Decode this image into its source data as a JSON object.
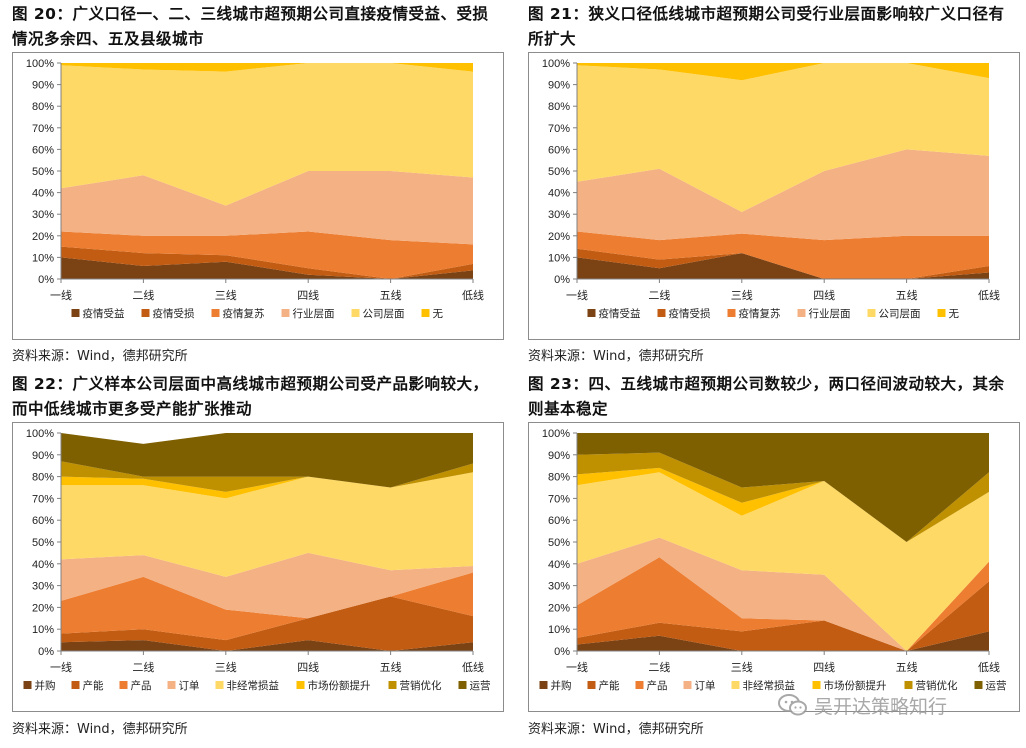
{
  "figures": [
    {
      "title": "图 20：广义口径一、二、三线城市超预期公司直接疫情受益、受损情况多余四、五及县级城市",
      "source": "资料来源：Wind，德邦研究所",
      "chart_data": {
        "type": "area",
        "stacked": true,
        "categories": [
          "一线",
          "二线",
          "三线",
          "四线",
          "五线",
          "低线"
        ],
        "ylim": [
          0,
          100
        ],
        "yticks": [
          "0%",
          "10%",
          "20%",
          "30%",
          "40%",
          "50%",
          "60%",
          "70%",
          "80%",
          "90%",
          "100%"
        ],
        "legend_position": "bottom",
        "series": [
          {
            "name": "疫情受益",
            "color": "#7b4214",
            "values": [
              10,
              6,
              8,
              2,
              0,
              4
            ]
          },
          {
            "name": "疫情受损",
            "color": "#c25c12",
            "values": [
              5,
              6,
              3,
              3,
              0,
              3
            ]
          },
          {
            "name": "疫情复苏",
            "color": "#ed7d31",
            "values": [
              7,
              8,
              9,
              17,
              18,
              9
            ]
          },
          {
            "name": "行业层面",
            "color": "#f4b183",
            "values": [
              20,
              28,
              14,
              28,
              32,
              31
            ]
          },
          {
            "name": "公司层面",
            "color": "#ffd966",
            "values": [
              57,
              49,
              62,
              50,
              50,
              49
            ]
          },
          {
            "name": "无",
            "color": "#ffc000",
            "values": [
              1,
              3,
              4,
              0,
              0,
              4
            ]
          }
        ]
      }
    },
    {
      "title": "图 21：狭义口径低线城市超预期公司受行业层面影响较广义口径有所扩大",
      "source": "资料来源：Wind，德邦研究所",
      "chart_data": {
        "type": "area",
        "stacked": true,
        "categories": [
          "一线",
          "二线",
          "三线",
          "四线",
          "五线",
          "低线"
        ],
        "ylim": [
          0,
          100
        ],
        "yticks": [
          "0%",
          "10%",
          "20%",
          "30%",
          "40%",
          "50%",
          "60%",
          "70%",
          "80%",
          "90%",
          "100%"
        ],
        "legend_position": "bottom",
        "series": [
          {
            "name": "疫情受益",
            "color": "#7b4214",
            "values": [
              10,
              5,
              12,
              0,
              0,
              3
            ]
          },
          {
            "name": "疫情受损",
            "color": "#c25c12",
            "values": [
              4,
              4,
              0,
              0,
              0,
              3
            ]
          },
          {
            "name": "疫情复苏",
            "color": "#ed7d31",
            "values": [
              8,
              9,
              9,
              18,
              20,
              14
            ]
          },
          {
            "name": "行业层面",
            "color": "#f4b183",
            "values": [
              23,
              33,
              10,
              32,
              40,
              37
            ]
          },
          {
            "name": "公司层面",
            "color": "#ffd966",
            "values": [
              54,
              46,
              61,
              50,
              40,
              36
            ]
          },
          {
            "name": "无",
            "color": "#ffc000",
            "values": [
              1,
              3,
              8,
              0,
              0,
              7
            ]
          }
        ]
      }
    },
    {
      "title": "图 22：广义样本公司层面中高线城市超预期公司受产品影响较大，而中低线城市更多受产能扩张推动",
      "source": "资料来源：Wind，德邦研究所",
      "chart_data": {
        "type": "area",
        "stacked": true,
        "categories": [
          "一线",
          "二线",
          "三线",
          "四线",
          "五线",
          "低线"
        ],
        "ylim": [
          0,
          100
        ],
        "yticks": [
          "0%",
          "10%",
          "20%",
          "30%",
          "40%",
          "50%",
          "60%",
          "70%",
          "80%",
          "90%",
          "100%"
        ],
        "legend_position": "bottom",
        "series": [
          {
            "name": "并购",
            "color": "#7b4214",
            "values": [
              4,
              5,
              0,
              5,
              0,
              4
            ]
          },
          {
            "name": "产能",
            "color": "#c25c12",
            "values": [
              4,
              5,
              5,
              10,
              25,
              12
            ]
          },
          {
            "name": "产品",
            "color": "#ed7d31",
            "values": [
              15,
              24,
              14,
              0,
              0,
              20
            ]
          },
          {
            "name": "订单",
            "color": "#f4b183",
            "values": [
              19,
              10,
              15,
              30,
              12,
              3
            ]
          },
          {
            "name": "非经常损益",
            "color": "#ffd966",
            "values": [
              34,
              32,
              36,
              35,
              38,
              43
            ]
          },
          {
            "name": "市场份额提升",
            "color": "#ffc000",
            "values": [
              4,
              3,
              3,
              0,
              0,
              0
            ]
          },
          {
            "name": "营销优化",
            "color": "#bf9000",
            "values": [
              7,
              1,
              7,
              0,
              0,
              4
            ]
          },
          {
            "name": "运营",
            "color": "#7f6000",
            "values": [
              13,
              15,
              20,
              20,
              25,
              14
            ]
          }
        ]
      }
    },
    {
      "title": "图 23：四、五线城市超预期公司数较少，两口径间波动较大，其余则基本稳定",
      "source": "资料来源：Wind，德邦研究所",
      "chart_data": {
        "type": "area",
        "stacked": true,
        "categories": [
          "一线",
          "二线",
          "三线",
          "四线",
          "五线",
          "低线"
        ],
        "ylim": [
          0,
          100
        ],
        "yticks": [
          "0%",
          "10%",
          "20%",
          "30%",
          "40%",
          "50%",
          "60%",
          "70%",
          "80%",
          "90%",
          "100%"
        ],
        "legend_position": "bottom",
        "series": [
          {
            "name": "并购",
            "color": "#7b4214",
            "values": [
              3,
              7,
              0,
              0,
              0,
              9
            ]
          },
          {
            "name": "产能",
            "color": "#c25c12",
            "values": [
              3,
              6,
              9,
              14,
              0,
              23
            ]
          },
          {
            "name": "产品",
            "color": "#ed7d31",
            "values": [
              15,
              30,
              6,
              0,
              0,
              9
            ]
          },
          {
            "name": "订单",
            "color": "#f4b183",
            "values": [
              19,
              9,
              22,
              21,
              0,
              0
            ]
          },
          {
            "name": "非经常损益",
            "color": "#ffd966",
            "values": [
              36,
              30,
              25,
              43,
              50,
              32
            ]
          },
          {
            "name": "市场份额提升",
            "color": "#ffc000",
            "values": [
              5,
              2,
              6,
              0,
              0,
              0
            ]
          },
          {
            "name": "营销优化",
            "color": "#bf9000",
            "values": [
              9,
              7,
              7,
              0,
              0,
              9
            ]
          },
          {
            "name": "运营",
            "color": "#7f6000",
            "values": [
              10,
              9,
              25,
              22,
              50,
              18
            ]
          }
        ]
      }
    }
  ],
  "watermark": {
    "text": "吴开达策略知行",
    "icon": "wechat-icon"
  }
}
